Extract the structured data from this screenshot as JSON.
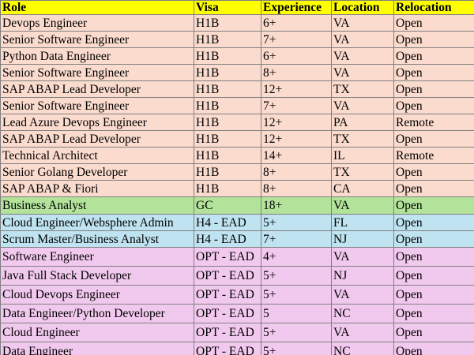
{
  "table": {
    "headers": [
      "Role",
      "Visa",
      "Experience",
      "Location",
      "Relocation"
    ],
    "header_color": "#ffff00",
    "group_colors": {
      "H1B": "#fadbce",
      "GC": "#b3e39a",
      "H4": "#bfe3f0",
      "OPT": "#f2c9ee"
    },
    "rows": [
      {
        "group": "H1B",
        "cells": [
          "Devops Engineer",
          "H1B",
          "6+",
          "VA",
          "Open"
        ]
      },
      {
        "group": "H1B",
        "cells": [
          "Senior Software Engineer",
          "H1B",
          "7+",
          "VA",
          "Open"
        ]
      },
      {
        "group": "H1B",
        "cells": [
          "Python Data Engineer",
          "H1B",
          "6+",
          "VA",
          "Open"
        ]
      },
      {
        "group": "H1B",
        "cells": [
          "Senior Software Engineer",
          "H1B",
          "8+",
          "VA",
          "Open"
        ]
      },
      {
        "group": "H1B",
        "cells": [
          "SAP ABAP Lead Developer",
          "H1B",
          "12+",
          "TX",
          "Open"
        ]
      },
      {
        "group": "H1B",
        "cells": [
          "Senior Software Engineer",
          "H1B",
          "7+",
          "VA",
          "Open"
        ]
      },
      {
        "group": "H1B",
        "cells": [
          "Lead Azure Devops Engineer",
          "H1B",
          "12+",
          "PA",
          "Remote"
        ]
      },
      {
        "group": "H1B",
        "cells": [
          "SAP ABAP Lead Developer",
          "H1B",
          "12+",
          "TX",
          "Open"
        ]
      },
      {
        "group": "H1B",
        "cells": [
          "Technical Architect",
          "H1B",
          "14+",
          "IL",
          "Remote"
        ]
      },
      {
        "group": "H1B",
        "cells": [
          "Senior Golang Developer",
          "H1B",
          "8+",
          "TX",
          "Open"
        ]
      },
      {
        "group": "H1B",
        "cells": [
          "SAP ABAP & Fiori",
          "H1B",
          "8+",
          "CA",
          "Open"
        ]
      },
      {
        "group": "GC",
        "cells": [
          "Business Analyst",
          "GC",
          "18+",
          "VA",
          "Open"
        ]
      },
      {
        "group": "H4",
        "cells": [
          "Cloud Engineer/Websphere Admin",
          "H4 - EAD",
          "5+",
          "FL",
          "Open"
        ]
      },
      {
        "group": "H4",
        "cells": [
          "Scrum Master/Business Analyst",
          "H4 - EAD",
          "7+",
          "NJ",
          "Open"
        ]
      },
      {
        "group": "OPT",
        "cells": [
          "Software Engineer",
          "OPT - EAD",
          "4+",
          "VA",
          "Open"
        ]
      },
      {
        "group": "OPT",
        "cells": [
          "Java Full Stack Developer",
          "OPT - EAD",
          "5+",
          "NJ",
          "Open"
        ]
      },
      {
        "group": "OPT",
        "cells": [
          "Cloud Devops Engineer",
          "OPT - EAD",
          "5+",
          "VA",
          "Open"
        ]
      },
      {
        "group": "OPT",
        "cells": [
          "Data Engineer/Python Developer",
          "OPT - EAD",
          "5",
          "NC",
          "Open"
        ]
      },
      {
        "group": "OPT",
        "cells": [
          "Cloud Engineer",
          "OPT - EAD",
          "5+",
          "VA",
          "Open"
        ]
      },
      {
        "group": "OPT",
        "cells": [
          "Data Engineer",
          "OPT - EAD",
          "5+",
          "NC",
          "Open"
        ]
      }
    ]
  }
}
